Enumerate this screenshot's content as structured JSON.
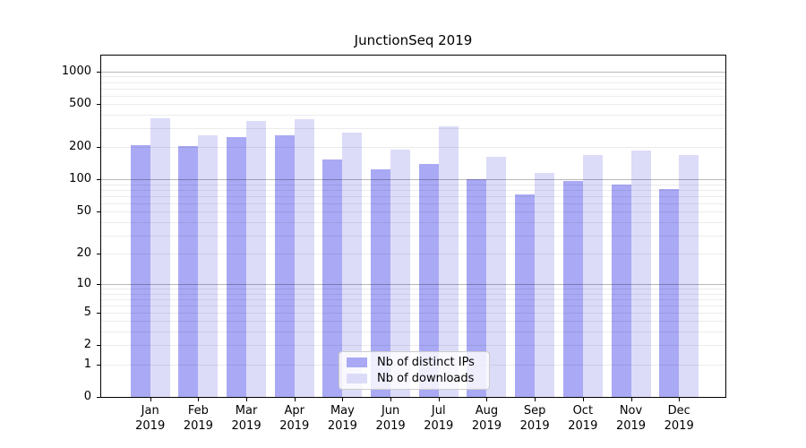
{
  "title": "JunctionSeq 2019",
  "colors": {
    "distinct_ips_bar": "#a9a9f5",
    "downloads_bar": "#dcdcf8",
    "major_gridline": "#b5b5b5",
    "minor_gridline": "#ececec",
    "axis": "#000000",
    "legend_border": "#cccccc"
  },
  "x_axis": {
    "months": [
      "Jan",
      "Feb",
      "Mar",
      "Apr",
      "May",
      "Jun",
      "Jul",
      "Aug",
      "Sep",
      "Oct",
      "Nov",
      "Dec"
    ],
    "year": "2019"
  },
  "y_axis": {
    "tick_labels": [
      "0",
      "1",
      "2",
      "5",
      "10",
      "20",
      "50",
      "100",
      "200",
      "500",
      "1000"
    ]
  },
  "legend": {
    "items": [
      {
        "label": "Nb of distinct IPs",
        "series": "distinct-ips",
        "color": "#a9a9f5"
      },
      {
        "label": "Nb of downloads",
        "series": "downloads",
        "color": "#dcdcf8"
      }
    ]
  },
  "chart_data": {
    "type": "bar",
    "title": "JunctionSeq 2019",
    "categories": [
      "Jan 2019",
      "Feb 2019",
      "Mar 2019",
      "Apr 2019",
      "May 2019",
      "Jun 2019",
      "Jul 2019",
      "Aug 2019",
      "Sep 2019",
      "Oct 2019",
      "Nov 2019",
      "Dec 2019"
    ],
    "series": [
      {
        "name": "Nb of distinct IPs",
        "color": "#a9a9f5",
        "values": [
          210,
          204,
          250,
          260,
          154,
          125,
          140,
          100,
          73,
          97,
          90,
          81
        ]
      },
      {
        "name": "Nb of downloads",
        "color": "#dcdcf8",
        "values": [
          373,
          260,
          352,
          366,
          272,
          189,
          310,
          164,
          115,
          170,
          187,
          169
        ]
      }
    ],
    "xlabel": "",
    "ylabel": "",
    "yscale": "log1p",
    "yticks": [
      0,
      1,
      2,
      5,
      10,
      20,
      50,
      100,
      200,
      500,
      1000
    ],
    "ylim": [
      0,
      1405
    ],
    "grid": true,
    "grid_major_at": [
      10,
      100,
      1000
    ],
    "grid_on_top_of_bars": true,
    "legend_position": "lower-center-inside"
  }
}
